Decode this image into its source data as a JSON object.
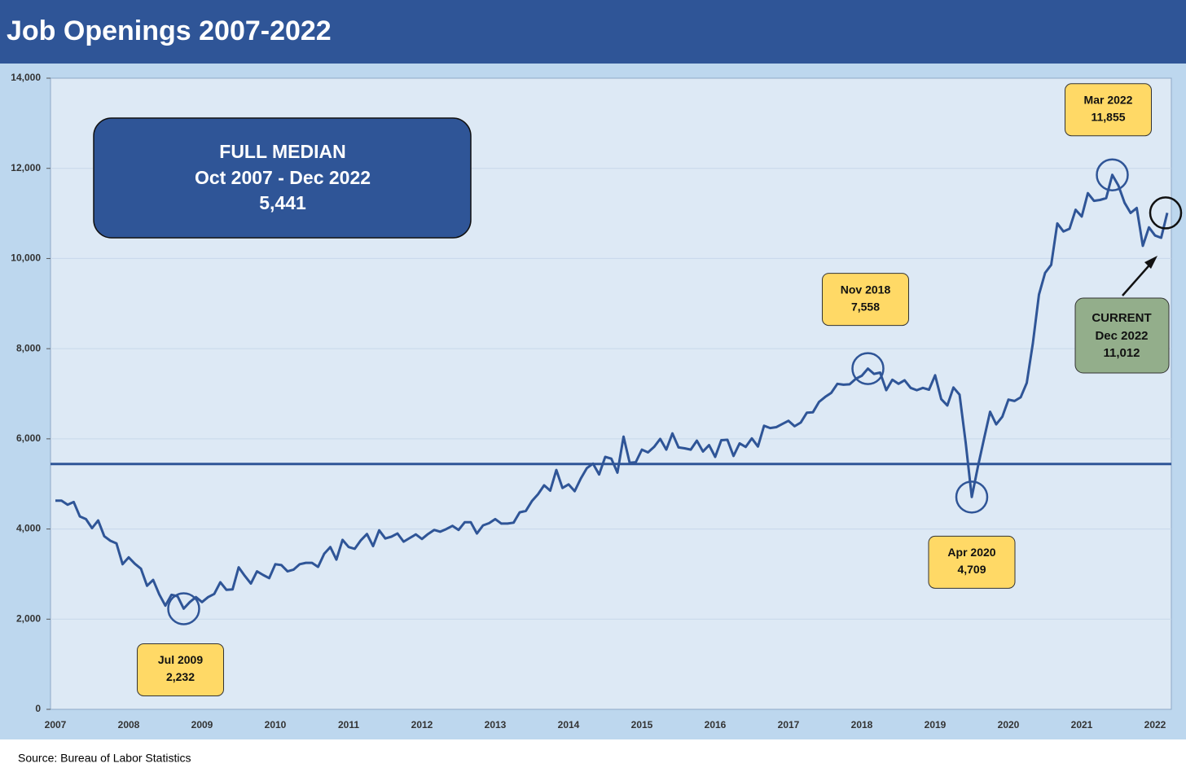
{
  "chart_data": {
    "type": "line",
    "title": "Job Openings 2007-2022",
    "source": "Source: Bureau of Labor Statistics",
    "categories": [
      "2007",
      null,
      null,
      null,
      null,
      null,
      null,
      null,
      null,
      null,
      null,
      null,
      "2008",
      null,
      null,
      null,
      null,
      null,
      null,
      null,
      null,
      null,
      null,
      null,
      "2009",
      null,
      null,
      null,
      null,
      null,
      null,
      null,
      null,
      null,
      null,
      null,
      "2010",
      null,
      null,
      null,
      null,
      null,
      null,
      null,
      null,
      null,
      null,
      null,
      "2011",
      null,
      null,
      null,
      null,
      null,
      null,
      null,
      null,
      null,
      null,
      null,
      "2012",
      null,
      null,
      null,
      null,
      null,
      null,
      null,
      null,
      null,
      null,
      null,
      "2013",
      null,
      null,
      null,
      null,
      null,
      null,
      null,
      null,
      null,
      null,
      null,
      "2014",
      null,
      null,
      null,
      null,
      null,
      null,
      null,
      null,
      null,
      null,
      null,
      "2015",
      null,
      null,
      null,
      null,
      null,
      null,
      null,
      null,
      null,
      null,
      null,
      "2016",
      null,
      null,
      null,
      null,
      null,
      null,
      null,
      null,
      null,
      null,
      null,
      "2017",
      null,
      null,
      null,
      null,
      null,
      null,
      null,
      null,
      null,
      null,
      null,
      "2018",
      null,
      null,
      null,
      null,
      null,
      null,
      null,
      null,
      null,
      null,
      null,
      "2019",
      null,
      null,
      null,
      null,
      null,
      null,
      null,
      null,
      null,
      null,
      null,
      "2020",
      null,
      null,
      null,
      null,
      null,
      null,
      null,
      null,
      null,
      null,
      null,
      "2021",
      null,
      null,
      null,
      null,
      null,
      null,
      null,
      null,
      null,
      null,
      null,
      "2022",
      null,
      null
    ],
    "series": [
      {
        "color": "#2f5597",
        "values": [
          4630,
          4630,
          4540,
          4600,
          4280,
          4220,
          4020,
          4190,
          3840,
          3740,
          3680,
          3220,
          3370,
          3230,
          3120,
          2740,
          2870,
          2550,
          2300,
          2540,
          2510,
          2232,
          2380,
          2490,
          2380,
          2490,
          2560,
          2820,
          2650,
          2660,
          3150,
          2960,
          2790,
          3060,
          2980,
          2910,
          3220,
          3200,
          3060,
          3100,
          3220,
          3250,
          3250,
          3160,
          3450,
          3600,
          3320,
          3760,
          3600,
          3560,
          3750,
          3890,
          3620,
          3970,
          3790,
          3830,
          3900,
          3720,
          3800,
          3880,
          3780,
          3890,
          3980,
          3940,
          4000,
          4070,
          3980,
          4150,
          4150,
          3900,
          4080,
          4130,
          4220,
          4120,
          4120,
          4140,
          4370,
          4400,
          4620,
          4770,
          4970,
          4850,
          5310,
          4910,
          4990,
          4840,
          5120,
          5350,
          5450,
          5210,
          5600,
          5560,
          5250,
          6050,
          5470,
          5480,
          5760,
          5700,
          5820,
          6000,
          5760,
          6120,
          5810,
          5790,
          5760,
          5960,
          5720,
          5860,
          5600,
          5970,
          5980,
          5620,
          5900,
          5820,
          6010,
          5830,
          6290,
          6240,
          6260,
          6330,
          6400,
          6280,
          6360,
          6580,
          6590,
          6820,
          6930,
          7020,
          7220,
          7200,
          7210,
          7330,
          7400,
          7558,
          7440,
          7470,
          7080,
          7310,
          7220,
          7300,
          7130,
          7080,
          7130,
          7090,
          7410,
          6880,
          6740,
          7140,
          6980,
          5920,
          4709,
          5380,
          6000,
          6600,
          6320,
          6490,
          6870,
          6840,
          6920,
          7240,
          8120,
          9200,
          9680,
          9860,
          10780,
          10600,
          10660,
          11080,
          10930,
          11450,
          11280,
          11300,
          11340,
          11855,
          11620,
          11240,
          11010,
          11120,
          10280,
          10690,
          10510,
          10460,
          11012
        ]
      }
    ],
    "ylim": [
      0,
      14000
    ],
    "yticks": [
      0,
      {
        "value": 2000,
        "label": "2,000"
      },
      {
        "value": 4000,
        "label": "4,000"
      },
      {
        "value": 6000,
        "label": "6,000"
      },
      {
        "value": 8000,
        "label": "8,000"
      },
      {
        "value": 10000,
        "label": "10,000"
      },
      {
        "value": 12000,
        "label": "12,000"
      },
      {
        "value": 14000,
        "label": "14,000"
      }
    ],
    "grid": true,
    "median": {
      "title": "FULL MEDIAN",
      "period": "Oct 2007 - Dec 2022",
      "value": 5441,
      "value_label": "5,441"
    },
    "annotations": [
      {
        "label": "Jul 2009",
        "value": 2232,
        "value_label": "2,232"
      },
      {
        "label": "Nov 2018",
        "value": 7558,
        "value_label": "7,558"
      },
      {
        "label": "Apr 2020",
        "value": 4709,
        "value_label": "4,709"
      },
      {
        "label": "Mar 2022",
        "value": 11855,
        "value_label": "11,855"
      }
    ],
    "current": {
      "label": "CURRENT",
      "date": "Dec 2022",
      "value": 11012,
      "value_label": "11,012"
    }
  }
}
